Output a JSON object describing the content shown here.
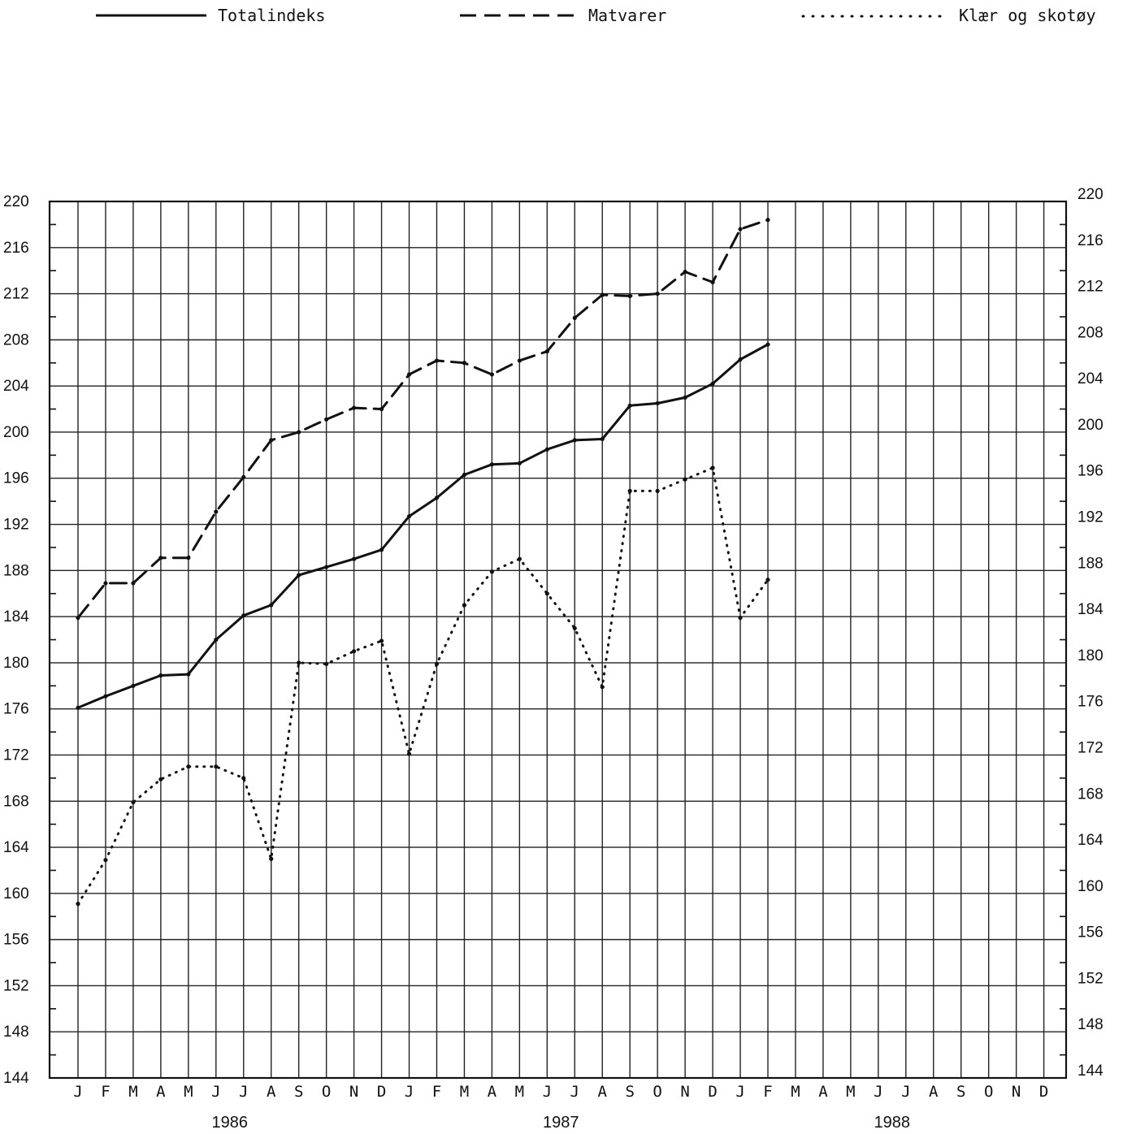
{
  "chart_data": {
    "type": "line",
    "legend_position": "top",
    "grid": true,
    "ylim": [
      144,
      220
    ],
    "y_ticks": [
      "144",
      "148",
      "152",
      "156",
      "160",
      "164",
      "168",
      "172",
      "176",
      "180",
      "184",
      "188",
      "192",
      "196",
      "200",
      "204",
      "208",
      "212",
      "216",
      "220"
    ],
    "month_labels": [
      "J",
      "F",
      "M",
      "A",
      "M",
      "J",
      "J",
      "A",
      "S",
      "O",
      "N",
      "D",
      "J",
      "F",
      "M",
      "A",
      "M",
      "J",
      "J",
      "A",
      "S",
      "O",
      "N",
      "D",
      "J",
      "F",
      "M",
      "A",
      "M",
      "J",
      "J",
      "A",
      "S",
      "O",
      "N",
      "D"
    ],
    "years": [
      "1986",
      "1987",
      "1988"
    ],
    "series": [
      {
        "name": "Totalindeks",
        "style": "solid",
        "color": "#111111",
        "values": [
          176.1,
          177.1,
          178.0,
          178.9,
          179.0,
          182.0,
          184.1,
          185.0,
          187.6,
          188.3,
          189.0,
          189.8,
          192.7,
          194.3,
          196.3,
          197.2,
          197.3,
          198.5,
          199.3,
          199.4,
          202.3,
          202.5,
          203.0,
          204.2,
          206.3,
          207.6
        ]
      },
      {
        "name": "Matvarer",
        "style": "dashed",
        "color": "#111111",
        "values": [
          183.9,
          186.9,
          186.9,
          189.1,
          189.1,
          193.1,
          196.1,
          199.3,
          200.0,
          201.1,
          202.1,
          202.0,
          205.0,
          206.2,
          206.0,
          205.0,
          206.2,
          207.0,
          209.9,
          211.9,
          211.8,
          212.0,
          213.9,
          213.0,
          217.6,
          218.4
        ]
      },
      {
        "name": "Klær og skotøy",
        "style": "dotted",
        "color": "#111111",
        "values": [
          159.1,
          162.9,
          167.9,
          169.9,
          171.0,
          171.0,
          170.0,
          163.0,
          180.0,
          179.9,
          181.0,
          181.9,
          172.1,
          179.9,
          185.0,
          187.9,
          189.0,
          186.0,
          183.0,
          177.9,
          194.9,
          194.9,
          195.9,
          196.9,
          183.9,
          187.2
        ]
      }
    ]
  }
}
